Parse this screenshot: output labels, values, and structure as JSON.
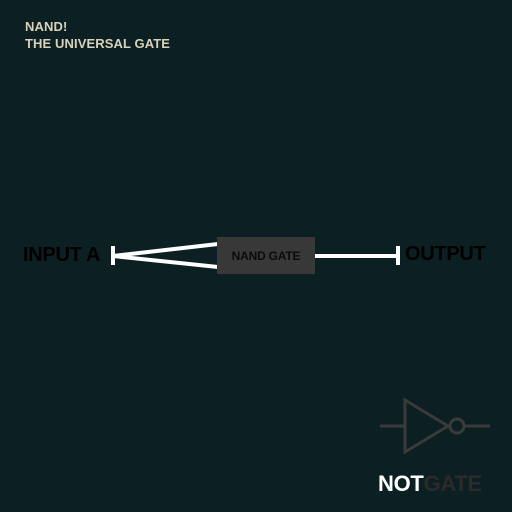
{
  "header": {
    "line1": "NAND!",
    "line2": "THE UNIVERSAL GATE"
  },
  "diagram": {
    "input_label": "INPUT A",
    "gate_label": "NAND GATE",
    "output_label": "OUTPUT"
  },
  "legend": {
    "word1": "NOT",
    "word2": "GATE",
    "icon": "not-gate-icon"
  },
  "colors": {
    "background": "#0c1f22",
    "header_text": "#d9d2bb",
    "wire": "#ffffff",
    "gate_box": "#383838",
    "label_text": "#000000",
    "symbol": "#3a3a3a"
  }
}
